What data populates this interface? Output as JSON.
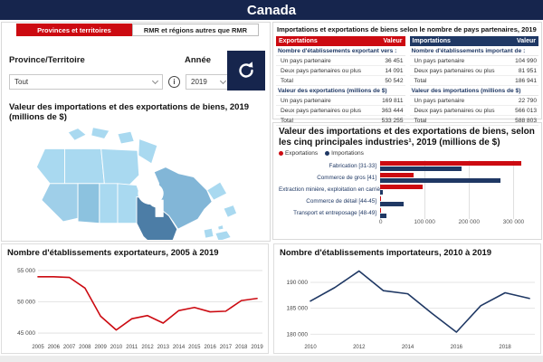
{
  "header": {
    "title": "Canada"
  },
  "tabs": {
    "provinces": "Provinces et territoires",
    "rmr": "RMR et régions autres que RMR"
  },
  "filters": {
    "province_label": "Province/Territoire",
    "province_value": "Tout",
    "year_label": "Année",
    "year_value": "2019"
  },
  "map_section": {
    "title": "Valeur des importations et des exportations de biens, 2019 (millions de $)"
  },
  "map_colors": {
    "base": "#a9d9f0",
    "bc": "#9fcfe9",
    "ab": "#8cc2df",
    "qc": "#82b6d7",
    "on": "#4c7da6",
    "water": "#ffffff"
  },
  "accent_colors": {
    "red": "#cc0a11",
    "navy": "#1f3864",
    "header_navy": "#16254d"
  },
  "partner_tables": {
    "title": "Importations et exportations de biens selon le nombre de pays partenaires, 2019",
    "exports": {
      "header": [
        "Exportations",
        "Valeur"
      ],
      "header_color": "#cc0a11",
      "sections": [
        {
          "label": "Nombre d'établissements exportant vers :",
          "rows": [
            [
              "Un pays partenaire",
              "36 451"
            ],
            [
              "Deux pays partenaires ou plus",
              "14 091"
            ],
            [
              "Total",
              "50 542"
            ]
          ]
        },
        {
          "label": "Valeur des exportations (millions de $)",
          "rows": [
            [
              "Un pays partenaire",
              "169 811"
            ],
            [
              "Deux pays partenaires ou plus",
              "363 444"
            ],
            [
              "Total",
              "533 255"
            ]
          ]
        }
      ]
    },
    "imports": {
      "header": [
        "Importations",
        "Valeur"
      ],
      "header_color": "#1f3864",
      "sections": [
        {
          "label": "Nombre d'établissements important de :",
          "rows": [
            [
              "Un pays partenaire",
              "104 990"
            ],
            [
              "Deux pays partenaires ou plus",
              "81 951"
            ],
            [
              "Total",
              "186 941"
            ]
          ]
        },
        {
          "label": "Valeur des importations (millions de $)",
          "rows": [
            [
              "Un pays partenaire",
              "22 790"
            ],
            [
              "Deux pays partenaires ou plus",
              "566 013"
            ],
            [
              "Total",
              "588 803"
            ]
          ]
        }
      ]
    }
  },
  "chart_data": [
    {
      "type": "bar",
      "orientation": "horizontal",
      "title": "Valeur des importations et des exportations de biens, selon les cinq principales industries¹, 2019 (millions de $)",
      "categories": [
        "Fabrication [31-33]",
        "Commerce de gros [41]",
        "Extraction minière, exploitation en carriè…",
        "Commerce de détail [44-45]",
        "Transport et entreposage [48-49]"
      ],
      "series": [
        {
          "name": "Exportations",
          "color": "#cc0a11",
          "values": [
            317000,
            75000,
            95000,
            2000,
            3000
          ]
        },
        {
          "name": "Importations",
          "color": "#1f3864",
          "values": [
            183000,
            270000,
            6000,
            52000,
            14000
          ]
        }
      ],
      "xlim": [
        0,
        350000
      ],
      "xticks": [
        {
          "value": 0,
          "label": "0"
        },
        {
          "value": 100000,
          "label": "100 000"
        },
        {
          "value": 200000,
          "label": "200 000"
        },
        {
          "value": 300000,
          "label": "300 000"
        }
      ],
      "legend_position": "top-left",
      "grid": true
    },
    {
      "type": "line",
      "title": "Nombre d'établissements exportateurs, 2005 à 2019",
      "color": "#cc0a11",
      "x": [
        "2005",
        "2006",
        "2007",
        "2008",
        "2009",
        "2010",
        "2011",
        "2012",
        "2013",
        "2014",
        "2015",
        "2016",
        "2017",
        "2018",
        "2019"
      ],
      "values": [
        54000,
        54000,
        53900,
        52200,
        47700,
        45500,
        47300,
        47800,
        46600,
        48600,
        49100,
        48400,
        48500,
        50200,
        50542
      ],
      "ylim": [
        44000,
        56000
      ],
      "yticks": [
        {
          "value": 45000,
          "label": "45 000"
        },
        {
          "value": 50000,
          "label": "50 000"
        },
        {
          "value": 55000,
          "label": "55 000"
        }
      ],
      "xticks": [
        "2005",
        "2006",
        "2007",
        "2008",
        "2009",
        "2010",
        "2011",
        "2012",
        "2013",
        "2014",
        "2015",
        "2016",
        "2017",
        "2018",
        "2019"
      ],
      "grid": true
    },
    {
      "type": "line",
      "title": "Nombre d'établissements importateurs, 2010 à 2019",
      "color": "#1f3864",
      "x": [
        "2010",
        "2011",
        "2012",
        "2013",
        "2014",
        "2015",
        "2016",
        "2017",
        "2018",
        "2019"
      ],
      "values": [
        186400,
        189000,
        192200,
        188400,
        187800,
        184000,
        180400,
        185500,
        188000,
        186900
      ],
      "ylim": [
        179000,
        193500
      ],
      "yticks": [
        {
          "value": 180000,
          "label": "180 000"
        },
        {
          "value": 185000,
          "label": "185 000"
        },
        {
          "value": 190000,
          "label": "190 000"
        }
      ],
      "xticks": [
        "2010",
        "2012",
        "2014",
        "2016",
        "2018"
      ],
      "grid": true
    }
  ]
}
